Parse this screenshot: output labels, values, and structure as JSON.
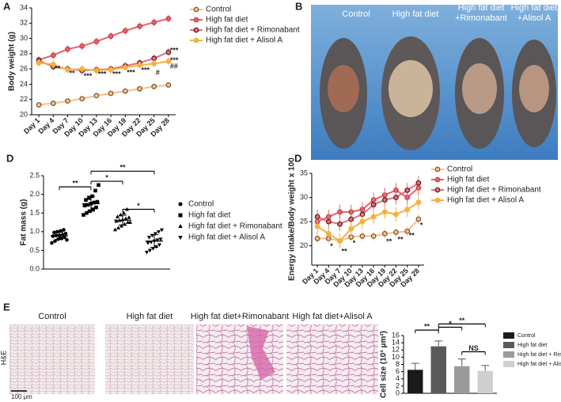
{
  "panel_letters": [
    "A",
    "B",
    "D",
    "D",
    "E"
  ],
  "chart_data": [
    {
      "type": "line",
      "ylabel": "Body weight (g)",
      "categories": [
        "Day 1",
        "Day 4",
        "Day 7",
        "Day 10",
        "Day 13",
        "Day 16",
        "Day 19",
        "Day 22",
        "Day 25",
        "Day 28"
      ],
      "ylim": [
        20,
        34
      ],
      "yticks": [
        20,
        22,
        24,
        26,
        28,
        30,
        32,
        34
      ],
      "legend": "right",
      "series": [
        {
          "name": "Control",
          "color": "#f5c08a",
          "marker_edge": "#7a5230",
          "values": [
            21.3,
            21.5,
            21.8,
            22.1,
            22.5,
            22.8,
            23.1,
            23.4,
            23.7,
            23.9
          ],
          "errors": [
            0.3,
            0.3,
            0.3,
            0.3,
            0.3,
            0.3,
            0.3,
            0.3,
            0.3,
            0.3
          ]
        },
        {
          "name": "High fat diet",
          "color": "#e8616b",
          "marker_edge": "#c0404a",
          "values": [
            27.2,
            27.8,
            28.6,
            29.0,
            29.6,
            30.3,
            31.0,
            31.6,
            32.1,
            32.6
          ],
          "errors": [
            0.5,
            0.5,
            0.5,
            0.5,
            0.5,
            0.5,
            0.5,
            0.5,
            0.5,
            0.5
          ]
        },
        {
          "name": "High fat diet + Rimonabant",
          "color": "#e07080",
          "marker_edge": "#5a1a1a",
          "values": [
            27.1,
            26.3,
            26.0,
            25.8,
            25.9,
            26.0,
            26.4,
            26.8,
            27.4,
            28.2
          ],
          "errors": [
            0.5,
            0.5,
            0.5,
            0.5,
            0.5,
            0.5,
            0.5,
            0.5,
            0.5,
            0.5
          ]
        },
        {
          "name": "High fat diet + Alisol A",
          "color": "#f5b041",
          "marker_edge": "#f5b041",
          "values": [
            26.8,
            26.6,
            25.9,
            26.0,
            25.8,
            25.9,
            26.2,
            26.5,
            26.7,
            27.0
          ],
          "errors": [
            0.5,
            0.5,
            0.5,
            0.5,
            0.5,
            0.5,
            0.5,
            0.5,
            0.5,
            0.5
          ]
        }
      ],
      "annotations": [
        {
          "text": "**",
          "category": "Day 4",
          "value": 26.0
        },
        {
          "text": "**",
          "category": "Day 7",
          "value": 25.4
        },
        {
          "text": "***",
          "category": "Day 10",
          "value": 25.0
        },
        {
          "text": "***",
          "category": "Day 13",
          "value": 25.3
        },
        {
          "text": "***",
          "category": "Day 16",
          "value": 25.3
        },
        {
          "text": "***",
          "category": "Day 19",
          "value": 25.5
        },
        {
          "text": "***",
          "category": "Day 22",
          "value": 25.8
        },
        {
          "text": "#",
          "category": "Day 25",
          "value": 25.5
        },
        {
          "text": "***",
          "category": "Day 28",
          "value": 28.4
        },
        {
          "text": "***",
          "category": "Day 28",
          "value": 27.1
        },
        {
          "text": "##",
          "category": "Day 28",
          "value": 26.3
        }
      ]
    },
    {
      "type": "dot",
      "ylabel": "Fat mass (g)",
      "color": "#000000",
      "ylim": [
        0,
        2.5
      ],
      "yticks": [
        {
          "value": 0,
          "label": "0.0"
        },
        0.5,
        {
          "value": 1,
          "label": "1.0"
        },
        1.5,
        {
          "value": 2,
          "label": "2.0"
        },
        2.5
      ],
      "series": [
        {
          "name": "Control",
          "marker": "circle",
          "values": [
            0.7,
            0.75,
            0.8,
            0.82,
            0.85,
            0.88,
            0.9,
            0.9,
            0.92,
            0.95,
            0.98,
            1.0,
            1.02,
            1.05,
            0.78
          ],
          "mean": 0.89,
          "sd": 0.1
        },
        {
          "name": "High fat diet",
          "marker": "square",
          "values": [
            1.45,
            1.5,
            1.55,
            1.6,
            1.65,
            1.7,
            1.72,
            1.75,
            1.78,
            1.8,
            1.85,
            1.9,
            1.95,
            2.1,
            2.25
          ],
          "mean": 1.75,
          "sd": 0.2
        },
        {
          "name": "High fat diet + Rimonabant",
          "marker": "triangle",
          "values": [
            1.05,
            1.1,
            1.15,
            1.2,
            1.25,
            1.28,
            1.3,
            1.32,
            1.35,
            1.38,
            1.4,
            1.45,
            1.5,
            1.6,
            1.25
          ],
          "mean": 1.31,
          "sd": 0.13
        },
        {
          "name": "High fat diet + Alisol A",
          "marker": "triangle-down",
          "values": [
            0.45,
            0.5,
            0.55,
            0.6,
            0.65,
            0.7,
            0.72,
            0.75,
            0.78,
            0.8,
            0.85,
            0.9,
            0.95,
            1.0,
            1.05
          ],
          "mean": 0.75,
          "sd": 0.17
        }
      ],
      "comparisons": [
        {
          "pair": [
            "Control",
            "High fat diet"
          ],
          "label": "**",
          "value": 2.2
        },
        {
          "pair": [
            "High fat diet",
            "High fat diet + Alisol A"
          ],
          "label": "**",
          "value": 2.62
        },
        {
          "pair": [
            "High fat diet",
            "High fat diet + Rimonabant"
          ],
          "label": "*",
          "value": 2.35
        },
        {
          "pair": [
            "High fat diet + Rimonabant",
            "High fat diet + Alisol A"
          ],
          "label": "*",
          "value": 1.6
        }
      ]
    },
    {
      "type": "line",
      "ylabel": "Energy intake/Body weight x 100",
      "categories": [
        "Day 1",
        "Day 4",
        "Day 7",
        "Day 10",
        "Day 13",
        "Day 16",
        "Day 19",
        "Day 22",
        "Day 25",
        "Day 28"
      ],
      "ylim": [
        16,
        35
      ],
      "yticks": [
        20,
        25,
        30,
        35
      ],
      "legend": "right",
      "series": [
        {
          "name": "Control",
          "color": "#f5c08a",
          "marker_edge": "#7a5230",
          "values": [
            21.5,
            21.5,
            21.0,
            21.8,
            22.0,
            22.0,
            22.5,
            22.8,
            23.0,
            25.5
          ],
          "errors": [
            1.0,
            1.0,
            1.0,
            1.0,
            1.0,
            1.0,
            1.0,
            1.0,
            1.0,
            1.0
          ]
        },
        {
          "name": "High fat diet",
          "color": "#e8616b",
          "marker_edge": "#c0404a",
          "values": [
            25.0,
            26.0,
            27.0,
            27.0,
            27.5,
            29.5,
            30.5,
            31.5,
            30.0,
            32.0
          ],
          "errors": [
            1.5,
            1.5,
            1.5,
            1.5,
            1.5,
            1.5,
            1.5,
            1.5,
            1.5,
            1.5
          ]
        },
        {
          "name": "High fat diet + Rimonabant",
          "color": "#e07080",
          "marker_edge": "#5a1a1a",
          "values": [
            26.0,
            25.0,
            24.5,
            25.5,
            26.5,
            28.5,
            29.5,
            30.0,
            31.5,
            33.0
          ],
          "errors": [
            1.5,
            1.5,
            1.5,
            1.5,
            1.5,
            1.5,
            1.5,
            1.5,
            1.5,
            1.5
          ]
        },
        {
          "name": "High fat diet + Alisol A",
          "color": "#f5b041",
          "marker_edge": "#f5b041",
          "values": [
            24.0,
            22.5,
            21.0,
            23.5,
            25.0,
            26.0,
            27.0,
            26.5,
            27.5,
            29.0
          ],
          "errors": [
            1.5,
            1.5,
            1.5,
            1.5,
            1.5,
            1.5,
            1.5,
            1.5,
            1.5,
            1.5
          ]
        }
      ],
      "annotations": [
        {
          "text": "*",
          "category": "Day 4",
          "value": 19.8
        },
        {
          "text": "**",
          "category": "Day 7",
          "value": 18.8
        },
        {
          "text": "*",
          "category": "Day 10",
          "value": 20.5
        },
        {
          "text": "**",
          "category": "Day 19",
          "value": 20.8
        },
        {
          "text": "**",
          "category": "Day 22",
          "value": 21.2
        },
        {
          "text": "**",
          "category": "Day 25",
          "value": 22.0
        },
        {
          "text": "*",
          "category": "Day 28",
          "value": 24.2
        }
      ]
    },
    {
      "type": "bar",
      "ylabel": "Cell size (10³ μm²)",
      "categories": [
        "Control",
        "High fat diet",
        "High fat diet + Rimonabant",
        "High fat diet + Alisol A"
      ],
      "values": [
        6.5,
        13.0,
        7.5,
        6.2
      ],
      "errors": [
        1.8,
        1.5,
        2.0,
        1.5
      ],
      "colors": [
        "#1a1a1a",
        "#5a5a5a",
        "#9a9a9a",
        "#cfcfcf"
      ],
      "ylim": [
        0,
        16
      ],
      "yticks": [
        0,
        2,
        4,
        6,
        8,
        10,
        12,
        14,
        16
      ],
      "legend": "right",
      "comparisons": [
        {
          "pair": [
            "Control",
            "High fat diet"
          ],
          "label": "**",
          "value": 17.5
        },
        {
          "pair": [
            "High fat diet",
            "High fat diet + Rimonabant"
          ],
          "label": "*",
          "value": 18.3
        },
        {
          "pair": [
            "High fat diet",
            "High fat diet + Alisol A"
          ],
          "label": "**",
          "value": 19.2
        },
        {
          "pair": [
            "High fat diet + Rimonabant",
            "High fat diet + Alisol A"
          ],
          "label": "NS",
          "value": 11.5
        }
      ]
    }
  ],
  "photo_b": {
    "labels": [
      [
        "Control"
      ],
      [
        "High fat diet"
      ],
      [
        "High fat diet",
        "+Rimonabant"
      ],
      [
        "High fat diet",
        "+Alisol A"
      ]
    ]
  },
  "histology": {
    "labels": [
      "Control",
      "High fat diet",
      "High fat diet+Rimonabant",
      "High fat diet+Alisol A"
    ],
    "stain": "H&E",
    "scale_bar": "100 μm"
  }
}
